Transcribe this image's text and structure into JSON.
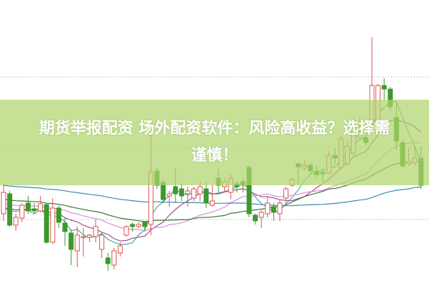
{
  "title": {
    "line1": "期货举报配资 场外配资软件：风险高收益？选择需",
    "line2": "谨慎！"
  },
  "chart_data": {
    "type": "candlestick",
    "title": "",
    "grid": "dotted horizontal",
    "colors": {
      "up": "#d9534f",
      "down": "#3a9a2a",
      "banner": "#b0d46e"
    },
    "moving_averages": [
      {
        "period": 5,
        "color": "#4fa8a0"
      },
      {
        "period": 10,
        "color": "#a0508a"
      },
      {
        "period": 20,
        "color": "#e08ae0"
      },
      {
        "period": 30,
        "color": "#3a7a3a"
      },
      {
        "period": 60,
        "color": "#3a8ab0"
      }
    ],
    "ohlc": [
      [
        100,
        130,
        142,
        90
      ],
      [
        128,
        84,
        132,
        82
      ],
      [
        84,
        95,
        100,
        76
      ],
      [
        94,
        112,
        115,
        88
      ],
      [
        115,
        104,
        125,
        100
      ],
      [
        107,
        104,
        115,
        100
      ],
      [
        104,
        114,
        125,
        102
      ],
      [
        113,
        60,
        115,
        58
      ],
      [
        60,
        108,
        122,
        58
      ],
      [
        108,
        88,
        112,
        80
      ],
      [
        87,
        75,
        95,
        55
      ],
      [
        73,
        50,
        78,
        28
      ],
      [
        48,
        70,
        82,
        25
      ],
      [
        67,
        68,
        80,
        40
      ],
      [
        67,
        70,
        72,
        60
      ],
      [
        68,
        82,
        92,
        60
      ],
      [
        50,
        70,
        74,
        38
      ],
      [
        38,
        30,
        45,
        20
      ],
      [
        28,
        48,
        52,
        22
      ],
      [
        45,
        55,
        60,
        40
      ],
      [
        70,
        82,
        84,
        68
      ],
      [
        85,
        82,
        88,
        75
      ],
      [
        82,
        85,
        88,
        80
      ],
      [
        88,
        82,
        90,
        75
      ],
      [
        85,
        158,
        212,
        70
      ],
      [
        160,
        140,
        164,
        135
      ],
      [
        144,
        120,
        148,
        115
      ],
      [
        125,
        128,
        132,
        110
      ],
      [
        138,
        128,
        164,
        115
      ],
      [
        135,
        125,
        142,
        118
      ],
      [
        128,
        132,
        138,
        110
      ],
      [
        122,
        135,
        138,
        118
      ],
      [
        128,
        138,
        145,
        118
      ],
      [
        135,
        115,
        145,
        108
      ],
      [
        112,
        118,
        140,
        110
      ],
      [
        150,
        140,
        162,
        130
      ],
      [
        138,
        145,
        150,
        130
      ],
      [
        130,
        150,
        155,
        120
      ],
      [
        142,
        138,
        146,
        130
      ],
      [
        145,
        140,
        150,
        130
      ],
      [
        165,
        100,
        168,
        95
      ],
      [
        98,
        90,
        100,
        85
      ],
      [
        95,
        102,
        105,
        80
      ],
      [
        100,
        115,
        125,
        95
      ],
      [
        110,
        102,
        115,
        90
      ],
      [
        100,
        115,
        120,
        90
      ],
      [
        122,
        135,
        138,
        115
      ],
      [
        140,
        148,
        150,
        138
      ],
      [
        170,
        166,
        172,
        140
      ],
      [
        164,
        168,
        175,
        160
      ],
      [
        168,
        160,
        172,
        155
      ],
      [
        160,
        155,
        168,
        150
      ],
      [
        158,
        156,
        164,
        145
      ],
      [
        157,
        182,
        188,
        155
      ],
      [
        182,
        178,
        192,
        170
      ],
      [
        165,
        205,
        210,
        162
      ],
      [
        170,
        195,
        202,
        168
      ],
      [
        185,
        228,
        235,
        180
      ],
      [
        207,
        212,
        235,
        205
      ],
      [
        207,
        200,
        210,
        195
      ],
      [
        230,
        280,
        348,
        225
      ],
      [
        230,
        280,
        282,
        225
      ],
      [
        280,
        275,
        290,
        260
      ],
      [
        275,
        250,
        278,
        245
      ],
      [
        235,
        202,
        255,
        190
      ],
      [
        200,
        167,
        205,
        165
      ],
      [
        170,
        173,
        193,
        168
      ],
      [
        172,
        178,
        195,
        168
      ],
      [
        178,
        140,
        195,
        135
      ]
    ]
  }
}
